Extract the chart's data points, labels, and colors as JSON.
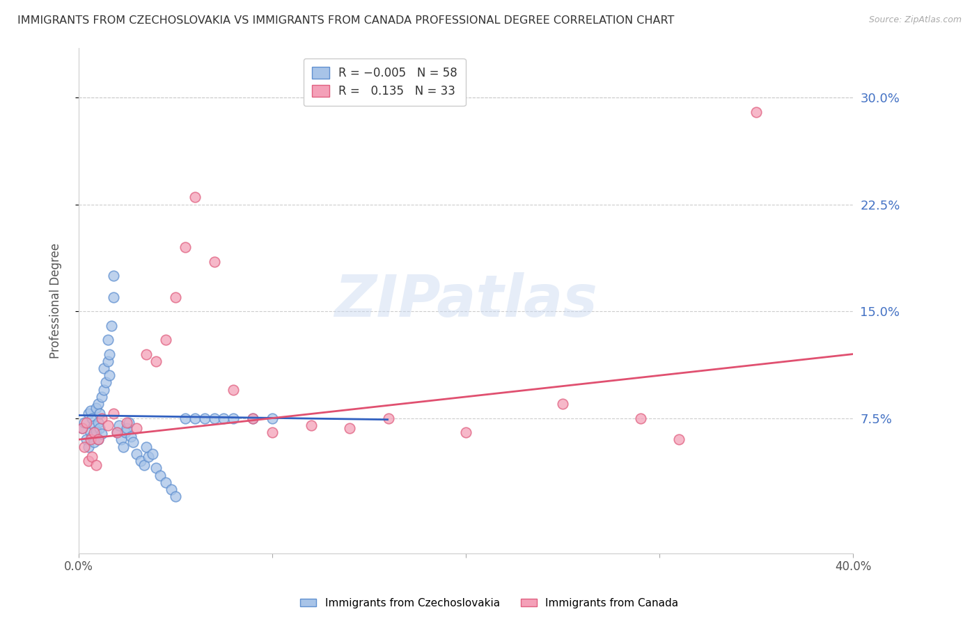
{
  "title": "IMMIGRANTS FROM CZECHOSLOVAKIA VS IMMIGRANTS FROM CANADA PROFESSIONAL DEGREE CORRELATION CHART",
  "source": "Source: ZipAtlas.com",
  "ylabel": "Professional Degree",
  "ytick_labels": [
    "7.5%",
    "15.0%",
    "22.5%",
    "30.0%"
  ],
  "ytick_values": [
    0.075,
    0.15,
    0.225,
    0.3
  ],
  "xlim": [
    0.0,
    0.4
  ],
  "ylim": [
    -0.02,
    0.335
  ],
  "blue_color": "#a8c4e8",
  "pink_color": "#f4a0b8",
  "blue_edge_color": "#6090d0",
  "pink_edge_color": "#e06080",
  "blue_trend_color": "#3060c0",
  "pink_trend_color": "#e05070",
  "watermark": "ZIPatlas",
  "background_color": "#ffffff",
  "grid_color": "#cccccc",
  "right_tick_color": "#4472c4",
  "blue_scatter_x": [
    0.002,
    0.003,
    0.004,
    0.005,
    0.005,
    0.006,
    0.006,
    0.007,
    0.007,
    0.008,
    0.008,
    0.009,
    0.009,
    0.01,
    0.01,
    0.01,
    0.011,
    0.011,
    0.012,
    0.012,
    0.013,
    0.013,
    0.014,
    0.015,
    0.015,
    0.016,
    0.016,
    0.017,
    0.018,
    0.018,
    0.02,
    0.021,
    0.022,
    0.023,
    0.024,
    0.025,
    0.026,
    0.027,
    0.028,
    0.03,
    0.032,
    0.034,
    0.035,
    0.036,
    0.038,
    0.04,
    0.042,
    0.045,
    0.048,
    0.05,
    0.055,
    0.06,
    0.065,
    0.07,
    0.075,
    0.08,
    0.09,
    0.1
  ],
  "blue_scatter_y": [
    0.068,
    0.072,
    0.06,
    0.055,
    0.078,
    0.065,
    0.08,
    0.062,
    0.075,
    0.058,
    0.07,
    0.066,
    0.082,
    0.06,
    0.072,
    0.085,
    0.068,
    0.078,
    0.064,
    0.09,
    0.11,
    0.095,
    0.1,
    0.13,
    0.115,
    0.12,
    0.105,
    0.14,
    0.16,
    0.175,
    0.065,
    0.07,
    0.06,
    0.055,
    0.065,
    0.068,
    0.072,
    0.062,
    0.058,
    0.05,
    0.045,
    0.042,
    0.055,
    0.048,
    0.05,
    0.04,
    0.035,
    0.03,
    0.025,
    0.02,
    0.075,
    0.075,
    0.075,
    0.075,
    0.075,
    0.075,
    0.075,
    0.075
  ],
  "pink_scatter_x": [
    0.002,
    0.003,
    0.004,
    0.005,
    0.006,
    0.007,
    0.008,
    0.009,
    0.01,
    0.012,
    0.015,
    0.018,
    0.02,
    0.025,
    0.03,
    0.035,
    0.04,
    0.045,
    0.05,
    0.055,
    0.06,
    0.07,
    0.08,
    0.09,
    0.1,
    0.12,
    0.14,
    0.16,
    0.2,
    0.25,
    0.29,
    0.31,
    0.35
  ],
  "pink_scatter_y": [
    0.068,
    0.055,
    0.072,
    0.045,
    0.06,
    0.048,
    0.065,
    0.042,
    0.06,
    0.075,
    0.07,
    0.078,
    0.065,
    0.072,
    0.068,
    0.12,
    0.115,
    0.13,
    0.16,
    0.195,
    0.23,
    0.185,
    0.095,
    0.075,
    0.065,
    0.07,
    0.068,
    0.075,
    0.065,
    0.085,
    0.075,
    0.06,
    0.29
  ],
  "blue_trend_x": [
    0.0,
    0.16
  ],
  "blue_trend_y_start": 0.077,
  "blue_trend_y_end": 0.074,
  "pink_trend_x": [
    0.0,
    0.4
  ],
  "pink_trend_y_start": 0.06,
  "pink_trend_y_end": 0.12
}
